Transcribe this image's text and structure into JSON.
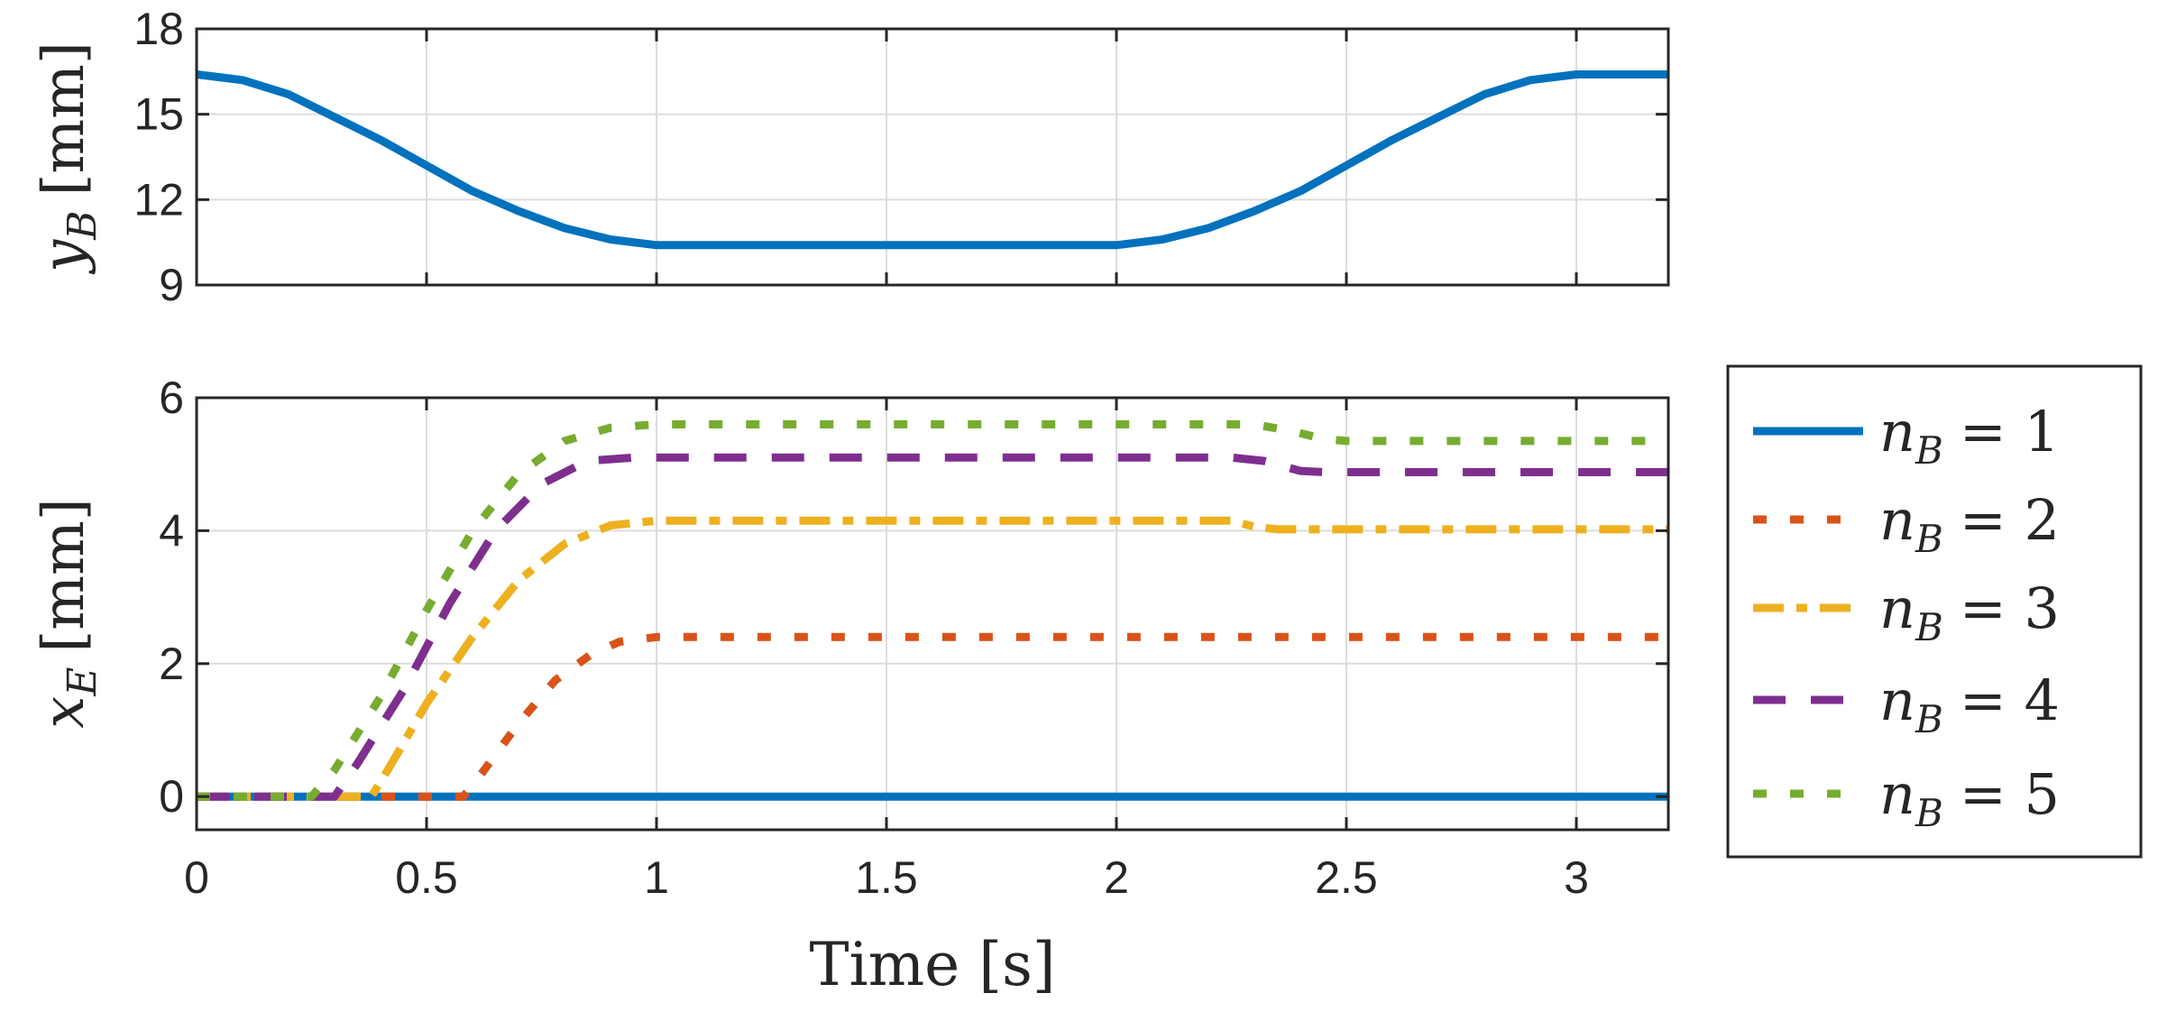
{
  "chart_data": [
    {
      "type": "line",
      "name": "top",
      "ylabel": {
        "var": "y",
        "sub": "B",
        "unit": "[mm]"
      },
      "xlim": [
        0,
        3.2
      ],
      "ylim": [
        9,
        18
      ],
      "yticks": [
        9,
        12,
        15,
        18
      ],
      "ytick_labels": [
        "9",
        "12",
        "15",
        "18"
      ],
      "grid": true,
      "series": [
        {
          "name": "y_B",
          "color": "#0072BD",
          "style": "solid",
          "x": [
            0,
            0.1,
            0.2,
            0.3,
            0.4,
            0.5,
            0.6,
            0.7,
            0.8,
            0.9,
            1.0,
            1.2,
            1.4,
            1.6,
            1.8,
            2.0,
            2.1,
            2.2,
            2.3,
            2.4,
            2.5,
            2.6,
            2.7,
            2.8,
            2.9,
            3.0,
            3.1,
            3.2
          ],
          "y": [
            16.4,
            16.2,
            15.7,
            14.9,
            14.1,
            13.2,
            12.3,
            11.6,
            11.0,
            10.6,
            10.4,
            10.4,
            10.4,
            10.4,
            10.4,
            10.4,
            10.6,
            11.0,
            11.6,
            12.3,
            13.2,
            14.1,
            14.9,
            15.7,
            16.2,
            16.4,
            16.4,
            16.4
          ]
        }
      ]
    },
    {
      "type": "line",
      "name": "bottom",
      "ylabel": {
        "var": "x",
        "sub": "E",
        "unit": "[mm]"
      },
      "xlabel": "Time [s]",
      "xlim": [
        0,
        3.2
      ],
      "ylim": [
        -0.5,
        6
      ],
      "yticks": [
        0,
        2,
        4,
        6
      ],
      "ytick_labels": [
        "0",
        "2",
        "4",
        "6"
      ],
      "xticks": [
        0,
        0.5,
        1,
        1.5,
        2,
        2.5,
        3
      ],
      "xtick_labels": [
        "0",
        "0.5",
        "1",
        "1.5",
        "2",
        "2.5",
        "3"
      ],
      "grid": true,
      "series": [
        {
          "name": "n_B = 1",
          "color": "#0072BD",
          "style": "solid",
          "x": [
            0,
            3.2
          ],
          "y": [
            0,
            0
          ]
        },
        {
          "name": "n_B = 2",
          "color": "#D95319",
          "style": "dotted",
          "x": [
            0,
            0.58,
            0.62,
            0.7,
            0.78,
            0.86,
            0.92,
            1.0,
            3.2
          ],
          "y": [
            0,
            0,
            0.35,
            1.1,
            1.75,
            2.15,
            2.33,
            2.4,
            2.4
          ]
        },
        {
          "name": "n_B = 3",
          "color": "#EDB120",
          "style": "dashdot",
          "x": [
            0,
            0.38,
            0.42,
            0.5,
            0.6,
            0.7,
            0.8,
            0.9,
            1.0,
            2.25,
            2.3,
            2.35,
            3.2
          ],
          "y": [
            0,
            0,
            0.45,
            1.4,
            2.4,
            3.25,
            3.8,
            4.08,
            4.15,
            4.15,
            4.06,
            4.02,
            4.02
          ]
        },
        {
          "name": "n_B = 4",
          "color": "#7E2F8E",
          "style": "dashed",
          "x": [
            0,
            0.3,
            0.35,
            0.45,
            0.55,
            0.65,
            0.75,
            0.85,
            0.95,
            2.25,
            2.32,
            2.4,
            2.45,
            3.2
          ],
          "y": [
            0,
            0,
            0.5,
            1.6,
            2.9,
            4.0,
            4.7,
            5.05,
            5.1,
            5.1,
            5.05,
            4.9,
            4.88,
            4.88
          ]
        },
        {
          "name": "n_B = 5",
          "color": "#77AC30",
          "style": "dotted",
          "x": [
            0,
            0.25,
            0.3,
            0.4,
            0.5,
            0.6,
            0.7,
            0.8,
            0.9,
            1.0,
            2.3,
            2.38,
            2.45,
            2.5,
            3.2
          ],
          "y": [
            0,
            0,
            0.4,
            1.5,
            2.8,
            4.0,
            4.85,
            5.35,
            5.55,
            5.6,
            5.6,
            5.5,
            5.38,
            5.35,
            5.35
          ]
        }
      ],
      "legend": {
        "placement": "outside-right",
        "entries": [
          {
            "var": "n",
            "sub": "B",
            "rel": "= 1"
          },
          {
            "var": "n",
            "sub": "B",
            "rel": "= 2"
          },
          {
            "var": "n",
            "sub": "B",
            "rel": "= 3"
          },
          {
            "var": "n",
            "sub": "B",
            "rel": "= 4"
          },
          {
            "var": "n",
            "sub": "B",
            "rel": "= 5"
          }
        ]
      }
    }
  ]
}
